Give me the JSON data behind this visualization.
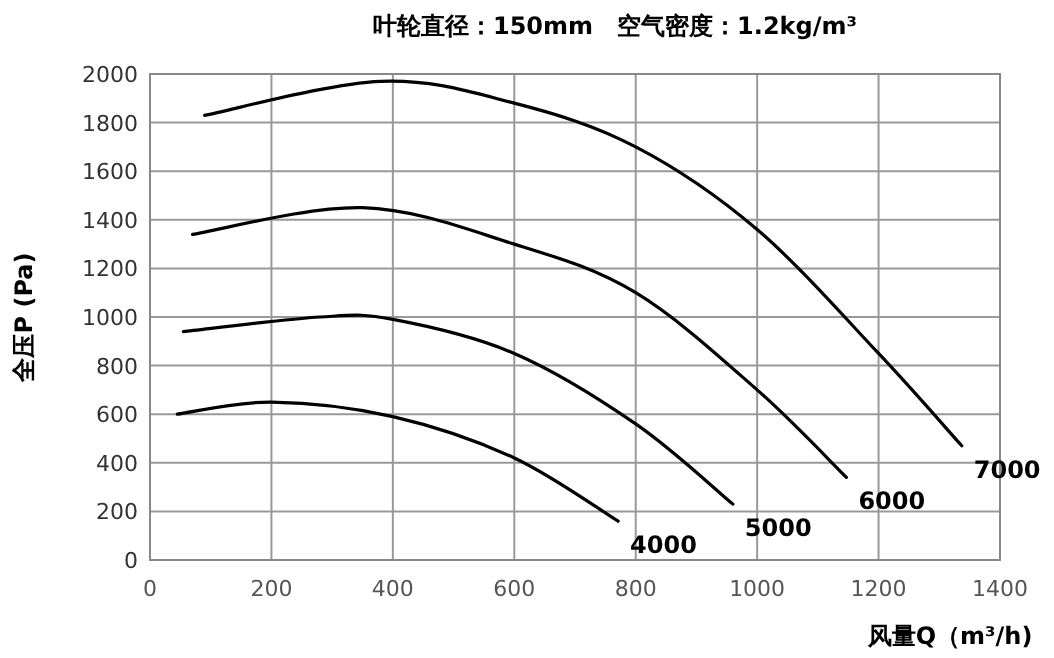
{
  "chart_data": {
    "type": "line",
    "title": "叶轮直径：150mm　空气密度：1.2kg/m³",
    "xlabel": "风量Q（m³/h)",
    "ylabel": "全压P (Pa)",
    "xlim": [
      0,
      1400
    ],
    "xticks": [
      0,
      200,
      400,
      600,
      800,
      1000,
      1200,
      1400
    ],
    "ylim": [
      0,
      2000
    ],
    "yticks": [
      0,
      200,
      400,
      600,
      800,
      1000,
      1200,
      1400,
      1600,
      1800,
      2000
    ],
    "grid": true,
    "marker": "none",
    "line_style": "solid",
    "series": [
      {
        "name": "4000",
        "color": "#000000",
        "x": [
          45,
          200,
          400,
          600,
          771
        ],
        "values": [
          600,
          650,
          590,
          420,
          160
        ]
      },
      {
        "name": "5000",
        "color": "#000000",
        "x": [
          55,
          280,
          400,
          600,
          800,
          960
        ],
        "values": [
          940,
          1000,
          990,
          850,
          560,
          230
        ]
      },
      {
        "name": "6000",
        "color": "#000000",
        "x": [
          70,
          350,
          600,
          800,
          1000,
          1147
        ],
        "values": [
          1340,
          1450,
          1300,
          1100,
          700,
          340
        ]
      },
      {
        "name": "7000",
        "color": "#000000",
        "x": [
          90,
          380,
          600,
          800,
          1000,
          1200,
          1337
        ],
        "values": [
          1830,
          1970,
          1880,
          1700,
          1360,
          850,
          470
        ]
      }
    ]
  }
}
